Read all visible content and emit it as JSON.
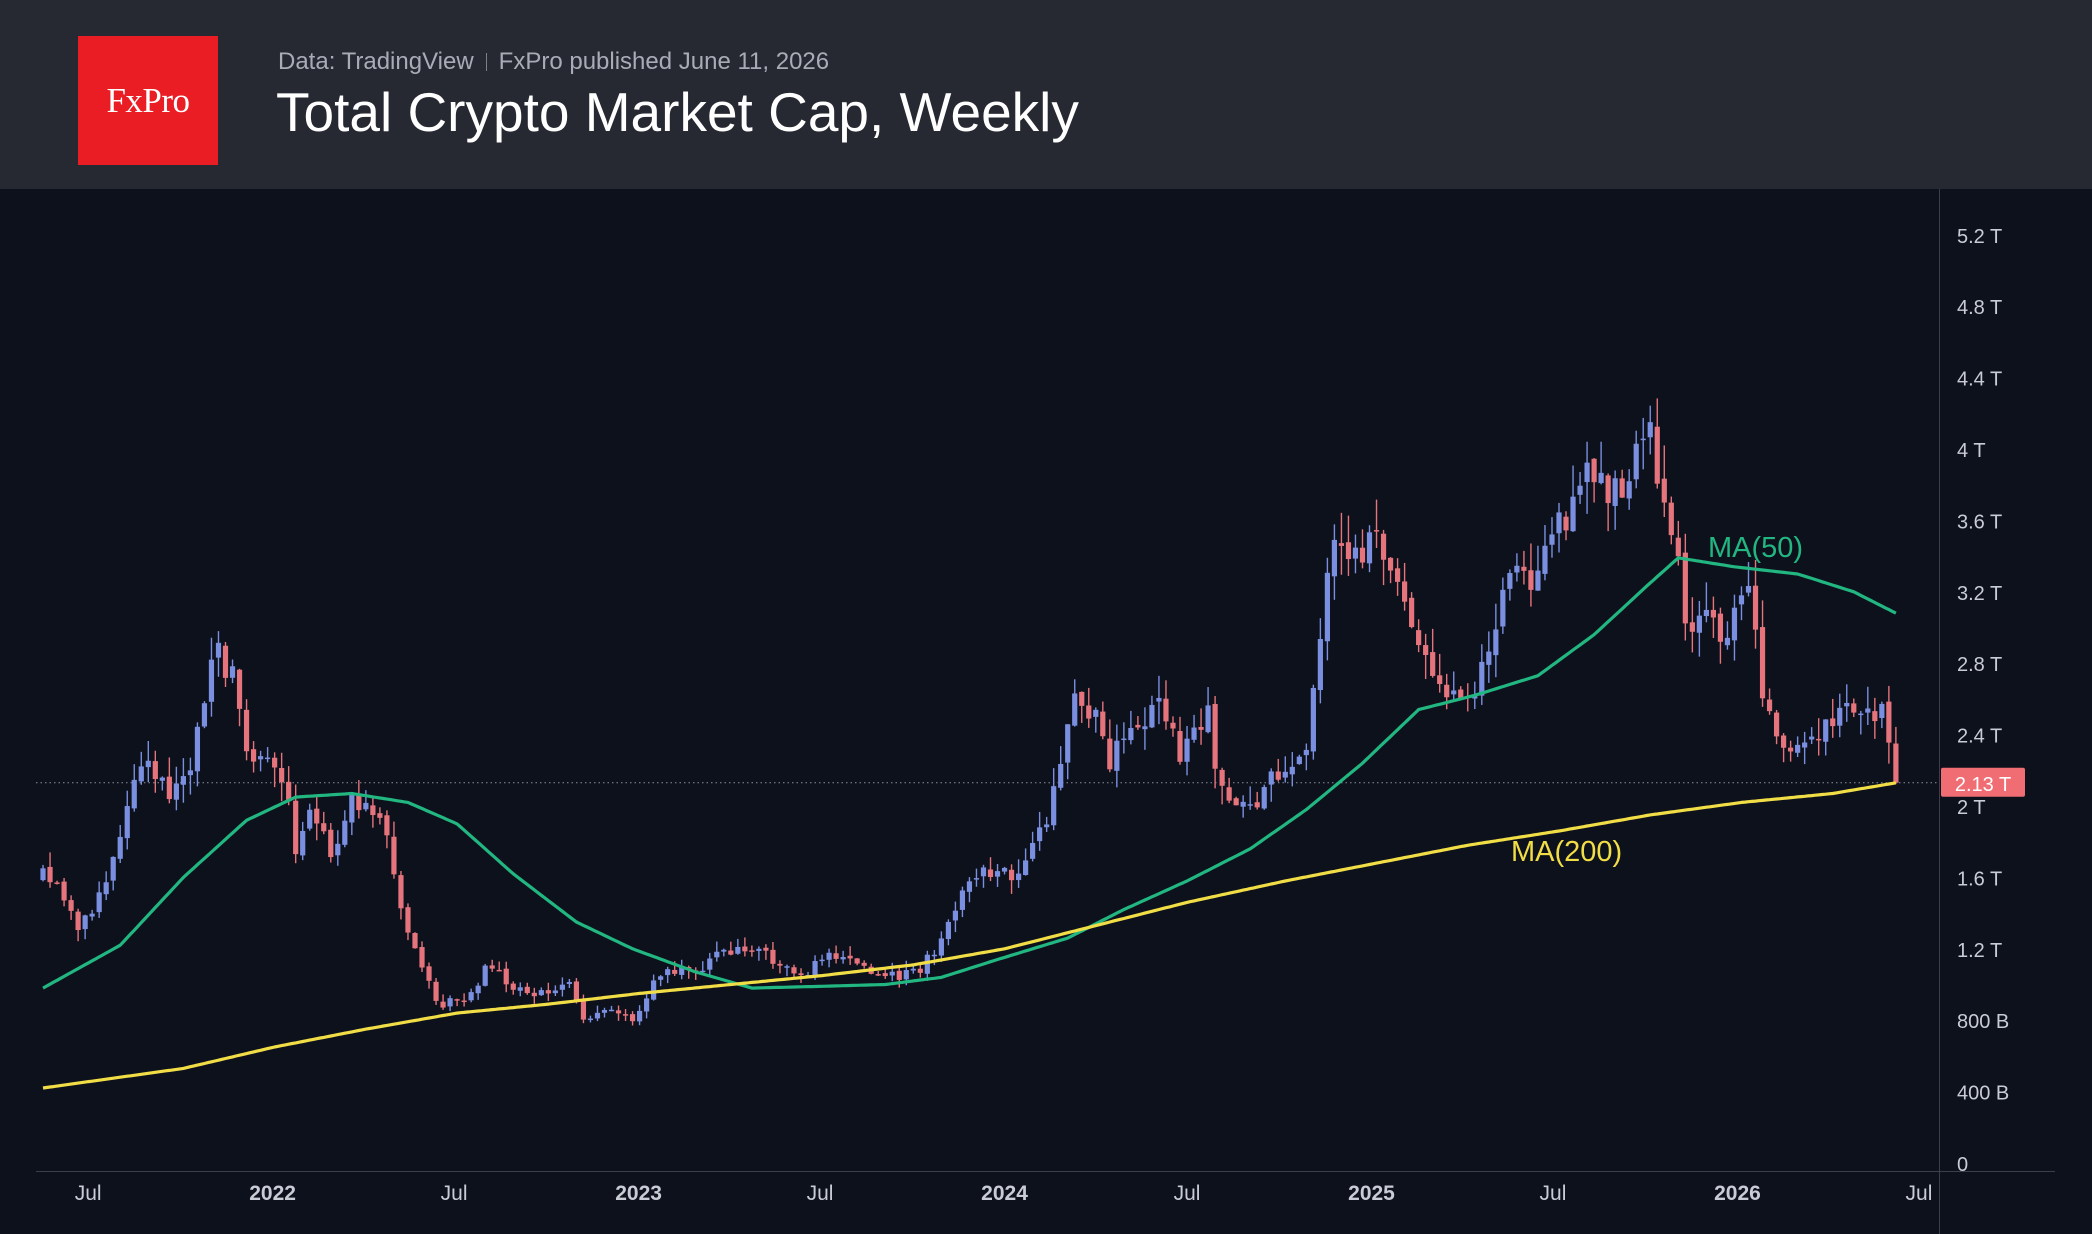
{
  "header": {
    "logo_text": "FxPro",
    "source": "Data: TradingView",
    "published": "FxPro published June 11, 2026",
    "title": "Total Crypto Market Cap, Weekly"
  },
  "colors": {
    "background": "#0d111c",
    "header_bg": "#262832",
    "logo_bg": "#ea1c24",
    "up": "#7a8fe0",
    "down": "#e5747c",
    "ma50": "#22b681",
    "ma200": "#f1dd46",
    "last_price_bg": "#ef6d73",
    "axis_text": "#c9ccd4"
  },
  "chart_data": {
    "type": "candlestick",
    "title": "Total Crypto Market Cap, Weekly",
    "x_ticks": [
      {
        "date": "2021-07",
        "label": "Jul",
        "bold": false
      },
      {
        "date": "2022-01",
        "label": "2022",
        "bold": true
      },
      {
        "date": "2022-07",
        "label": "Jul",
        "bold": false
      },
      {
        "date": "2023-01",
        "label": "2023",
        "bold": true
      },
      {
        "date": "2023-07",
        "label": "Jul",
        "bold": false
      },
      {
        "date": "2024-01",
        "label": "2024",
        "bold": true
      },
      {
        "date": "2024-07",
        "label": "Jul",
        "bold": false
      },
      {
        "date": "2025-01",
        "label": "2025",
        "bold": true
      },
      {
        "date": "2025-07",
        "label": "Jul",
        "bold": false
      },
      {
        "date": "2026-01",
        "label": "2026",
        "bold": true
      },
      {
        "date": "2026-07",
        "label": "Jul",
        "bold": false
      }
    ],
    "y_ticks": [
      {
        "value": 0,
        "label": "0"
      },
      {
        "value": 0.4,
        "label": "400 B"
      },
      {
        "value": 0.8,
        "label": "800 B"
      },
      {
        "value": 1.2,
        "label": "1.2 T"
      },
      {
        "value": 1.6,
        "label": "1.6 T"
      },
      {
        "value": 2.0,
        "label": "2 T"
      },
      {
        "value": 2.4,
        "label": "2.4 T"
      },
      {
        "value": 2.8,
        "label": "2.8 T"
      },
      {
        "value": 3.2,
        "label": "3.2 T"
      },
      {
        "value": 3.6,
        "label": "3.6 T"
      },
      {
        "value": 4.0,
        "label": "4 T"
      },
      {
        "value": 4.4,
        "label": "4.4 T"
      },
      {
        "value": 4.8,
        "label": "4.8 T"
      },
      {
        "value": 5.2,
        "label": "5.2 T"
      }
    ],
    "y_unit": "trillion USD",
    "y_range": [
      0,
      5.4
    ],
    "x_range": [
      "2021-05-10",
      "2026-07-20"
    ],
    "last_price": {
      "value": 2.13,
      "label": "2.13 T"
    },
    "ma_labels": {
      "ma50": "MA(50)",
      "ma200": "MA(200)"
    },
    "close_anchors": [
      [
        "2021-05-17",
        1.68
      ],
      [
        "2021-06-07",
        1.5
      ],
      [
        "2021-06-21",
        1.35
      ],
      [
        "2021-07-19",
        1.52
      ],
      [
        "2021-08-09",
        1.98
      ],
      [
        "2021-08-30",
        2.32
      ],
      [
        "2021-09-20",
        1.98
      ],
      [
        "2021-10-11",
        2.25
      ],
      [
        "2021-10-25",
        2.62
      ],
      [
        "2021-11-08",
        2.85
      ],
      [
        "2021-11-22",
        2.72
      ],
      [
        "2021-12-06",
        2.38
      ],
      [
        "2021-12-27",
        2.22
      ],
      [
        "2022-01-17",
        2.05
      ],
      [
        "2022-01-24",
        1.72
      ],
      [
        "2022-02-07",
        1.95
      ],
      [
        "2022-02-28",
        1.72
      ],
      [
        "2022-03-21",
        2.08
      ],
      [
        "2022-04-04",
        1.98
      ],
      [
        "2022-04-25",
        1.85
      ],
      [
        "2022-05-09",
        1.45
      ],
      [
        "2022-06-13",
        0.88
      ],
      [
        "2022-07-11",
        0.92
      ],
      [
        "2022-08-08",
        1.12
      ],
      [
        "2022-08-22",
        0.98
      ],
      [
        "2022-09-19",
        0.96
      ],
      [
        "2022-10-24",
        1.0
      ],
      [
        "2022-11-07",
        0.82
      ],
      [
        "2022-12-05",
        0.84
      ],
      [
        "2022-12-26",
        0.8
      ],
      [
        "2023-01-16",
        1.02
      ],
      [
        "2023-02-13",
        1.08
      ],
      [
        "2023-03-13",
        1.12
      ],
      [
        "2023-04-10",
        1.22
      ],
      [
        "2023-05-15",
        1.14
      ],
      [
        "2023-06-12",
        1.06
      ],
      [
        "2023-07-10",
        1.18
      ],
      [
        "2023-08-21",
        1.08
      ],
      [
        "2023-09-11",
        1.04
      ],
      [
        "2023-10-09",
        1.06
      ],
      [
        "2023-10-30",
        1.28
      ],
      [
        "2023-11-20",
        1.48
      ],
      [
        "2023-12-11",
        1.62
      ],
      [
        "2024-01-15",
        1.64
      ],
      [
        "2024-02-05",
        1.82
      ],
      [
        "2024-02-19",
        2.1
      ],
      [
        "2024-03-11",
        2.6
      ],
      [
        "2024-04-01",
        2.5
      ],
      [
        "2024-04-15",
        2.28
      ],
      [
        "2024-05-13",
        2.4
      ],
      [
        "2024-06-03",
        2.52
      ],
      [
        "2024-06-24",
        2.32
      ],
      [
        "2024-07-22",
        2.52
      ],
      [
        "2024-08-05",
        2.05
      ],
      [
        "2024-09-02",
        2.0
      ],
      [
        "2024-09-23",
        2.18
      ],
      [
        "2024-10-28",
        2.35
      ],
      [
        "2024-11-11",
        2.95
      ],
      [
        "2024-11-25",
        3.45
      ],
      [
        "2024-12-16",
        3.4
      ],
      [
        "2025-01-06",
        3.45
      ],
      [
        "2025-01-27",
        3.2
      ],
      [
        "2025-02-24",
        2.9
      ],
      [
        "2025-03-17",
        2.62
      ],
      [
        "2025-04-07",
        2.55
      ],
      [
        "2025-04-28",
        2.88
      ],
      [
        "2025-05-19",
        3.3
      ],
      [
        "2025-06-16",
        3.25
      ],
      [
        "2025-07-07",
        3.55
      ],
      [
        "2025-08-11",
        3.95
      ],
      [
        "2025-09-01",
        3.75
      ],
      [
        "2025-09-22",
        3.9
      ],
      [
        "2025-10-06",
        4.12
      ],
      [
        "2025-10-20",
        3.7
      ],
      [
        "2025-11-10",
        3.1
      ],
      [
        "2025-11-24",
        3.0
      ],
      [
        "2025-12-22",
        3.0
      ],
      [
        "2026-01-12",
        3.15
      ],
      [
        "2026-01-26",
        2.68
      ],
      [
        "2026-02-09",
        2.32
      ],
      [
        "2026-03-02",
        2.28
      ],
      [
        "2026-03-23",
        2.38
      ],
      [
        "2026-04-13",
        2.55
      ],
      [
        "2026-05-04",
        2.58
      ],
      [
        "2026-05-25",
        2.52
      ],
      [
        "2026-06-08",
        2.13
      ]
    ],
    "series": [
      {
        "name": "MA(50)",
        "points": [
          [
            "2021-05-17",
            0.98
          ],
          [
            "2021-08-02",
            1.22
          ],
          [
            "2021-10-04",
            1.6
          ],
          [
            "2021-12-06",
            1.92
          ],
          [
            "2022-01-24",
            2.05
          ],
          [
            "2022-03-21",
            2.07
          ],
          [
            "2022-05-16",
            2.02
          ],
          [
            "2022-07-04",
            1.9
          ],
          [
            "2022-08-29",
            1.62
          ],
          [
            "2022-10-31",
            1.35
          ],
          [
            "2022-12-26",
            1.2
          ],
          [
            "2023-02-27",
            1.07
          ],
          [
            "2023-04-24",
            0.98
          ],
          [
            "2023-07-03",
            0.99
          ],
          [
            "2023-09-04",
            1.0
          ],
          [
            "2023-10-30",
            1.04
          ],
          [
            "2023-12-25",
            1.14
          ],
          [
            "2024-03-04",
            1.26
          ],
          [
            "2024-04-29",
            1.42
          ],
          [
            "2024-07-01",
            1.58
          ],
          [
            "2024-09-02",
            1.76
          ],
          [
            "2024-10-28",
            1.98
          ],
          [
            "2024-12-23",
            2.24
          ],
          [
            "2025-02-17",
            2.54
          ],
          [
            "2025-04-14",
            2.62
          ],
          [
            "2025-06-16",
            2.73
          ],
          [
            "2025-08-11",
            2.96
          ],
          [
            "2025-10-06",
            3.25
          ],
          [
            "2025-11-03",
            3.39
          ],
          [
            "2025-12-29",
            3.34
          ],
          [
            "2026-03-02",
            3.3
          ],
          [
            "2026-04-27",
            3.2
          ],
          [
            "2026-06-08",
            3.08
          ]
        ]
      },
      {
        "name": "MA(200)",
        "points": [
          [
            "2021-05-17",
            0.42
          ],
          [
            "2021-10-04",
            0.53
          ],
          [
            "2022-01-03",
            0.65
          ],
          [
            "2022-04-04",
            0.75
          ],
          [
            "2022-07-04",
            0.84
          ],
          [
            "2022-10-03",
            0.89
          ],
          [
            "2023-01-02",
            0.95
          ],
          [
            "2023-04-03",
            1.0
          ],
          [
            "2023-07-03",
            1.05
          ],
          [
            "2023-10-02",
            1.11
          ],
          [
            "2024-01-01",
            1.2
          ],
          [
            "2024-04-01",
            1.33
          ],
          [
            "2024-07-01",
            1.46
          ],
          [
            "2024-10-07",
            1.58
          ],
          [
            "2025-01-06",
            1.68
          ],
          [
            "2025-04-07",
            1.78
          ],
          [
            "2025-07-07",
            1.86
          ],
          [
            "2025-10-06",
            1.95
          ],
          [
            "2026-01-05",
            2.02
          ],
          [
            "2026-04-06",
            2.07
          ],
          [
            "2026-06-08",
            2.13
          ]
        ]
      }
    ]
  }
}
